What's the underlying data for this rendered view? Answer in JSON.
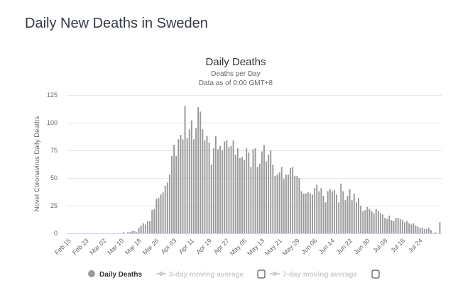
{
  "page": {
    "title": "Daily New Deaths in Sweden"
  },
  "chart_data": {
    "type": "bar",
    "title": "Daily Deaths",
    "subtitle": "Deaths per Day",
    "subtitle2": "Data as of 0:00 GMT+8",
    "xlabel": "",
    "ylabel": "Novel Coronavirus Daily Deaths",
    "ylim": [
      0,
      125
    ],
    "yticks": [
      0,
      25,
      50,
      75,
      100,
      125
    ],
    "grid": true,
    "start_date": "Feb 15",
    "xtick_labels": [
      "Feb 15",
      "Feb 23",
      "Mar 02",
      "Mar 10",
      "Mar 18",
      "Mar 26",
      "Apr 03",
      "Apr 11",
      "Apr 19",
      "Apr 27",
      "May 05",
      "May 13",
      "May 21",
      "May 29",
      "Jun 06",
      "Jun 14",
      "Jun 22",
      "Jun 30",
      "Jul 08",
      "Jul 16",
      "Jul 24"
    ],
    "xtick_every_days": 8,
    "bar_color": "#999999",
    "series": [
      {
        "name": "Daily Deaths",
        "values": [
          0,
          0,
          0,
          0,
          0,
          0,
          0,
          0,
          0,
          0,
          0,
          0,
          0,
          0,
          0,
          0,
          0,
          0,
          0,
          0,
          0,
          0,
          0,
          0,
          0,
          1,
          0,
          1,
          1,
          2,
          2,
          1,
          5,
          7,
          9,
          8,
          11,
          11,
          21,
          22,
          31,
          32,
          35,
          37,
          43,
          46,
          53,
          70,
          80,
          70,
          85,
          89,
          85,
          115,
          86,
          94,
          102,
          85,
          95,
          114,
          110,
          94,
          84,
          88,
          82,
          62,
          77,
          88,
          76,
          79,
          75,
          83,
          84,
          78,
          79,
          84,
          71,
          77,
          68,
          69,
          66,
          77,
          73,
          60,
          76,
          77,
          60,
          63,
          74,
          80,
          65,
          71,
          75,
          62,
          52,
          53,
          55,
          60,
          49,
          53,
          53,
          59,
          60,
          52,
          52,
          50,
          38,
          36,
          36,
          37,
          36,
          35,
          41,
          44,
          38,
          41,
          34,
          28,
          38,
          40,
          38,
          39,
          35,
          28,
          45,
          38,
          30,
          34,
          40,
          30,
          36,
          28,
          32,
          25,
          20,
          21,
          24,
          22,
          20,
          18,
          22,
          20,
          18,
          17,
          14,
          13,
          16,
          12,
          11,
          14,
          14,
          13,
          12,
          10,
          11,
          9,
          8,
          9,
          7,
          6,
          5,
          5,
          4,
          4,
          5,
          3,
          0,
          1,
          0,
          10
        ]
      }
    ],
    "legend": {
      "position": "bottom",
      "items": [
        {
          "label": "Daily Deaths",
          "active": true,
          "checkbox": false
        },
        {
          "label": "3-day moving average",
          "active": false,
          "checkbox": true
        },
        {
          "label": "7-day moving average",
          "active": false,
          "checkbox": true
        }
      ]
    }
  }
}
